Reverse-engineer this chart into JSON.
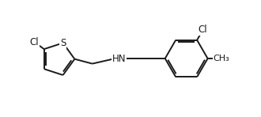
{
  "bg_color": "#ffffff",
  "line_color": "#1a1a1a",
  "line_width": 1.4,
  "font_size": 8.5,
  "atoms": {
    "S_label": "S",
    "Cl1_label": "Cl",
    "Cl2_label": "Cl",
    "NH_label": "HN",
    "Me_label": "CH₃"
  },
  "xlim": [
    0,
    10
  ],
  "ylim": [
    0,
    3
  ]
}
